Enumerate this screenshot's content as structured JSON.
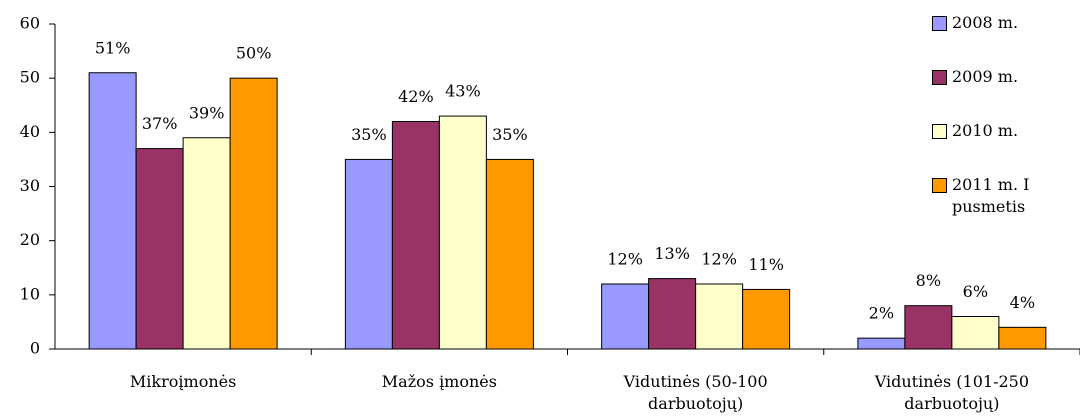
{
  "chart_data": {
    "type": "bar",
    "categories": [
      "Mikroįmonės",
      "Mažos įmonės",
      "Vidutinės (50-100 darbuotojų)",
      "Vidutinės (101-250 darbuotojų)"
    ],
    "series": [
      {
        "name": "2008 m.",
        "color": "#9999ff",
        "values": [
          51,
          35,
          12,
          2
        ],
        "value_labels": [
          "51%",
          "35%",
          "12%",
          "2%"
        ]
      },
      {
        "name": "2009 m.",
        "color": "#993366",
        "values": [
          37,
          42,
          13,
          8
        ],
        "value_labels": [
          "37%",
          "42%",
          "13%",
          "8%"
        ]
      },
      {
        "name": "2010 m.",
        "color": "#ffffcc",
        "values": [
          39,
          43,
          12,
          6
        ],
        "value_labels": [
          "39%",
          "43%",
          "12%",
          "6%"
        ]
      },
      {
        "name": "2011 m. I pusmetis",
        "color": "#ff9900",
        "values": [
          50,
          35,
          11,
          4
        ],
        "value_labels": [
          "50%",
          "35%",
          "11%",
          "4%"
        ]
      }
    ],
    "ylim": [
      0,
      60
    ],
    "yticks": [
      0,
      10,
      20,
      30,
      40,
      50,
      60
    ],
    "grid": false,
    "legend": "right"
  }
}
